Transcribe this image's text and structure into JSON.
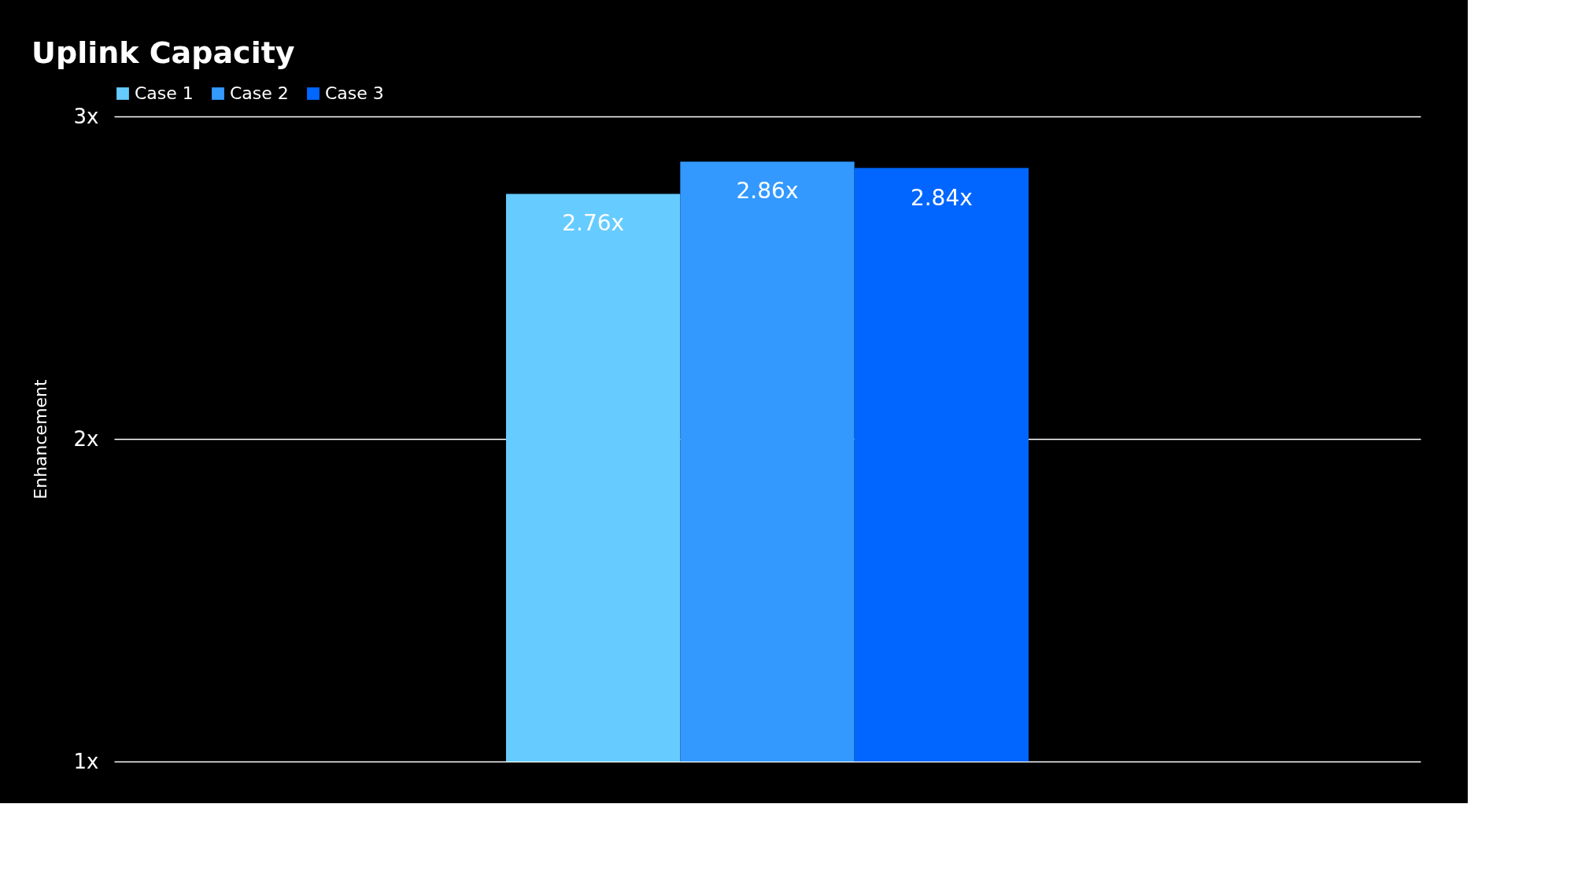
{
  "chart_data": {
    "type": "bar",
    "title": "Uplink Capacity",
    "ylabel": "Enhancement",
    "categories": [
      null
    ],
    "series": [
      {
        "name": "Case 1",
        "color": "#66ccff",
        "values": [
          2.76
        ],
        "value_labels": [
          "2.76x"
        ]
      },
      {
        "name": "Case 2",
        "color": "#3399ff",
        "values": [
          2.86
        ],
        "value_labels": [
          "2.86x"
        ]
      },
      {
        "name": "Case 3",
        "color": "#0066ff",
        "values": [
          2.84
        ],
        "value_labels": [
          "2.84x"
        ]
      }
    ],
    "ylim": [
      1,
      3
    ],
    "yticks": [
      {
        "value": 1,
        "label": "1x"
      },
      {
        "value": 2,
        "label": "2x"
      },
      {
        "value": 3,
        "label": "3x"
      }
    ],
    "grid": "y",
    "legend": "top left"
  }
}
